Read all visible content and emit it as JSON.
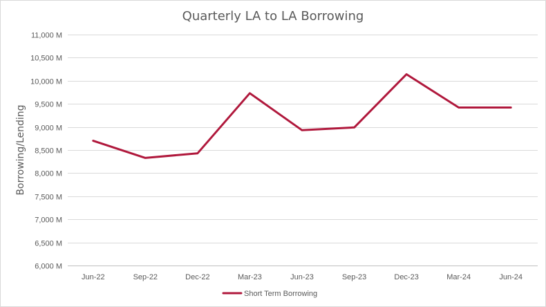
{
  "chart_data": {
    "type": "line",
    "title": "Quarterly LA to LA Borrowing",
    "xlabel": "",
    "ylabel": "Borrowing/Lending",
    "categories": [
      "Jun-22",
      "Sep-22",
      "Dec-22",
      "Mar-23",
      "Jun-23",
      "Sep-23",
      "Dec-23",
      "Mar-24",
      "Jun-24"
    ],
    "series": [
      {
        "name": "Short Term Borrowing",
        "values": [
          8700,
          8330,
          8430,
          9730,
          8930,
          8990,
          10140,
          9420,
          9420
        ],
        "color": "#b0183c"
      }
    ],
    "ylim": [
      6000,
      11000
    ],
    "yticks": [
      6000,
      6500,
      7000,
      7500,
      8000,
      8500,
      9000,
      9500,
      10000,
      10500,
      11000
    ],
    "ytick_labels": [
      "6,000 M",
      "6,500 M",
      "7,000 M",
      "7,500 M",
      "8,000 M",
      "8,500 M",
      "9,000 M",
      "9,500 M",
      "10,000 M",
      "10,500 M",
      "11,000 M"
    ],
    "grid": true,
    "legend_position": "bottom"
  },
  "colors": {
    "gridline": "#d9d9d9",
    "axis": "#bfbfbf",
    "text": "#595959"
  }
}
